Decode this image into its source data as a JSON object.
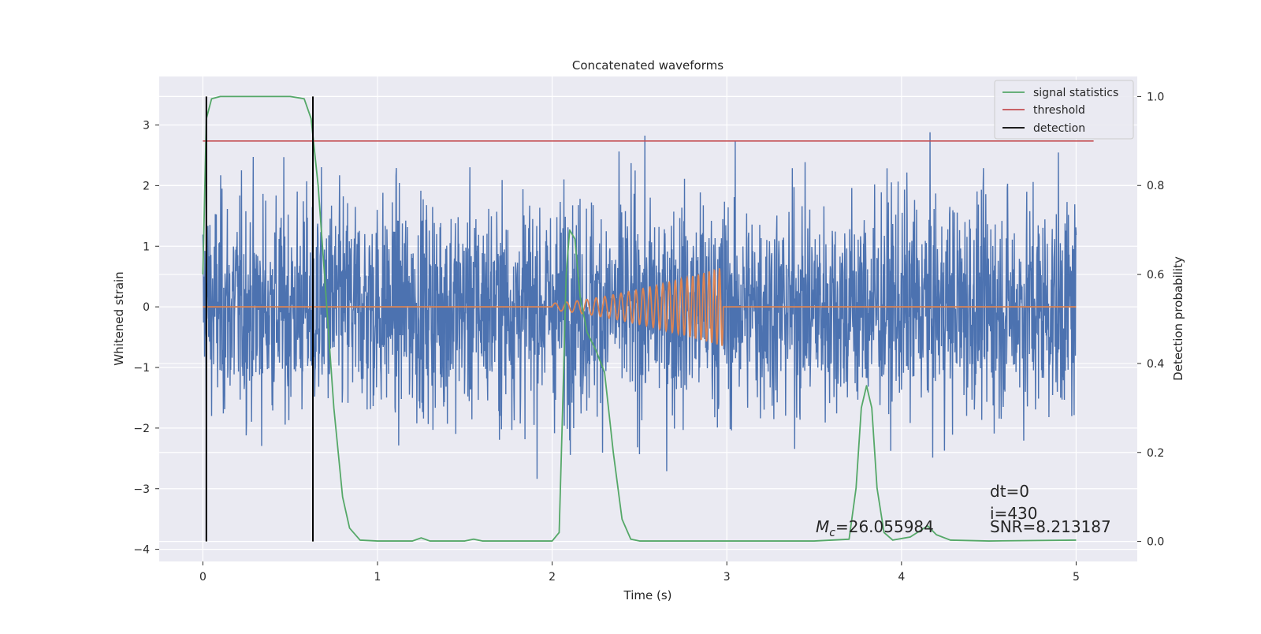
{
  "chart_data": {
    "type": "line",
    "title": "Concatenated waveforms",
    "xlabel": "Time (s)",
    "ylabel": "Whitened strain",
    "y2label": "Detection probability",
    "xlim": [
      -0.25,
      5.35
    ],
    "ylim": [
      -4.2,
      3.8
    ],
    "y2lim": [
      -0.045,
      1.045
    ],
    "xticks": [
      0,
      1,
      2,
      3,
      4,
      5
    ],
    "xtick_labels": [
      "0",
      "1",
      "2",
      "3",
      "4",
      "5"
    ],
    "yticks": [
      -4,
      -3,
      -2,
      -1,
      0,
      1,
      2,
      3
    ],
    "ytick_labels": [
      "−4",
      "−3",
      "−2",
      "−1",
      "0",
      "1",
      "2",
      "3"
    ],
    "y2ticks": [
      0.0,
      0.2,
      0.4,
      0.6,
      0.8,
      1.0
    ],
    "y2tick_labels": [
      "0.0",
      "0.2",
      "0.4",
      "0.6",
      "0.8",
      "1.0"
    ],
    "grid": true,
    "legend_position": "top-right",
    "colors": {
      "background": "#eaeaf2",
      "grid": "#ffffff",
      "noise": "#4c72b0",
      "template": "#dd8452",
      "statistic": "#55a868",
      "threshold": "#c44e52",
      "detection": "#000000"
    },
    "series": [
      {
        "name": "whitened strain (noise)",
        "axis": "left",
        "description": "Gaussian-like noise, duration 5 s, peaks up to about +3.5 and down to about -3.8",
        "t_start": 0,
        "t_end": 5,
        "envelope_max": 3.5,
        "envelope_min": -3.8
      },
      {
        "name": "injected waveform",
        "axis": "left",
        "chirp_start": 2.0,
        "chirp_end": 2.98,
        "final_amplitude": 0.65,
        "x_end": 5.0
      },
      {
        "name": "signal statistics",
        "axis": "right",
        "x": [
          0,
          0.02,
          0.05,
          0.1,
          0.2,
          0.5,
          0.58,
          0.62,
          0.66,
          0.7,
          0.75,
          0.8,
          0.84,
          0.9,
          1.0,
          1.2,
          1.25,
          1.3,
          1.5,
          1.55,
          1.6,
          2.0,
          2.04,
          2.06,
          2.08,
          2.1,
          2.13,
          2.16,
          2.2,
          2.25,
          2.3,
          2.35,
          2.4,
          2.45,
          2.5,
          3.0,
          3.5,
          3.7,
          3.74,
          3.77,
          3.8,
          3.83,
          3.86,
          3.9,
          3.95,
          4.05,
          4.15,
          4.2,
          4.28,
          4.5,
          5.0
        ],
        "values": [
          0.6,
          0.95,
          0.995,
          1.0,
          1.0,
          1.0,
          0.995,
          0.95,
          0.8,
          0.58,
          0.3,
          0.1,
          0.03,
          0.003,
          0.001,
          0.001,
          0.008,
          0.001,
          0.001,
          0.005,
          0.001,
          0.001,
          0.02,
          0.3,
          0.6,
          0.7,
          0.68,
          0.55,
          0.47,
          0.43,
          0.38,
          0.2,
          0.05,
          0.005,
          0.001,
          0.001,
          0.001,
          0.005,
          0.12,
          0.3,
          0.35,
          0.3,
          0.12,
          0.02,
          0.003,
          0.01,
          0.035,
          0.015,
          0.003,
          0.001,
          0.003
        ]
      },
      {
        "name": "threshold",
        "axis": "right",
        "x": [
          0,
          5.1
        ],
        "values": [
          0.9,
          0.9
        ]
      },
      {
        "name": "detection",
        "axis": "right",
        "x": [
          0.02,
          0.63
        ],
        "ymin": 0.0,
        "ymax": 1.0
      }
    ],
    "legend": [
      {
        "label": "signal statistics",
        "color": "#55a868"
      },
      {
        "label": "threshold",
        "color": "#c44e52"
      },
      {
        "label": "detection",
        "color": "#000000"
      }
    ],
    "annotations": {
      "chirp_mass_label": "=26.055984",
      "chirp_mass_symbol": "M",
      "chirp_mass_sub": "c",
      "dt": "dt=0",
      "index": "i=430",
      "snr": "SNR=8.213187"
    }
  }
}
